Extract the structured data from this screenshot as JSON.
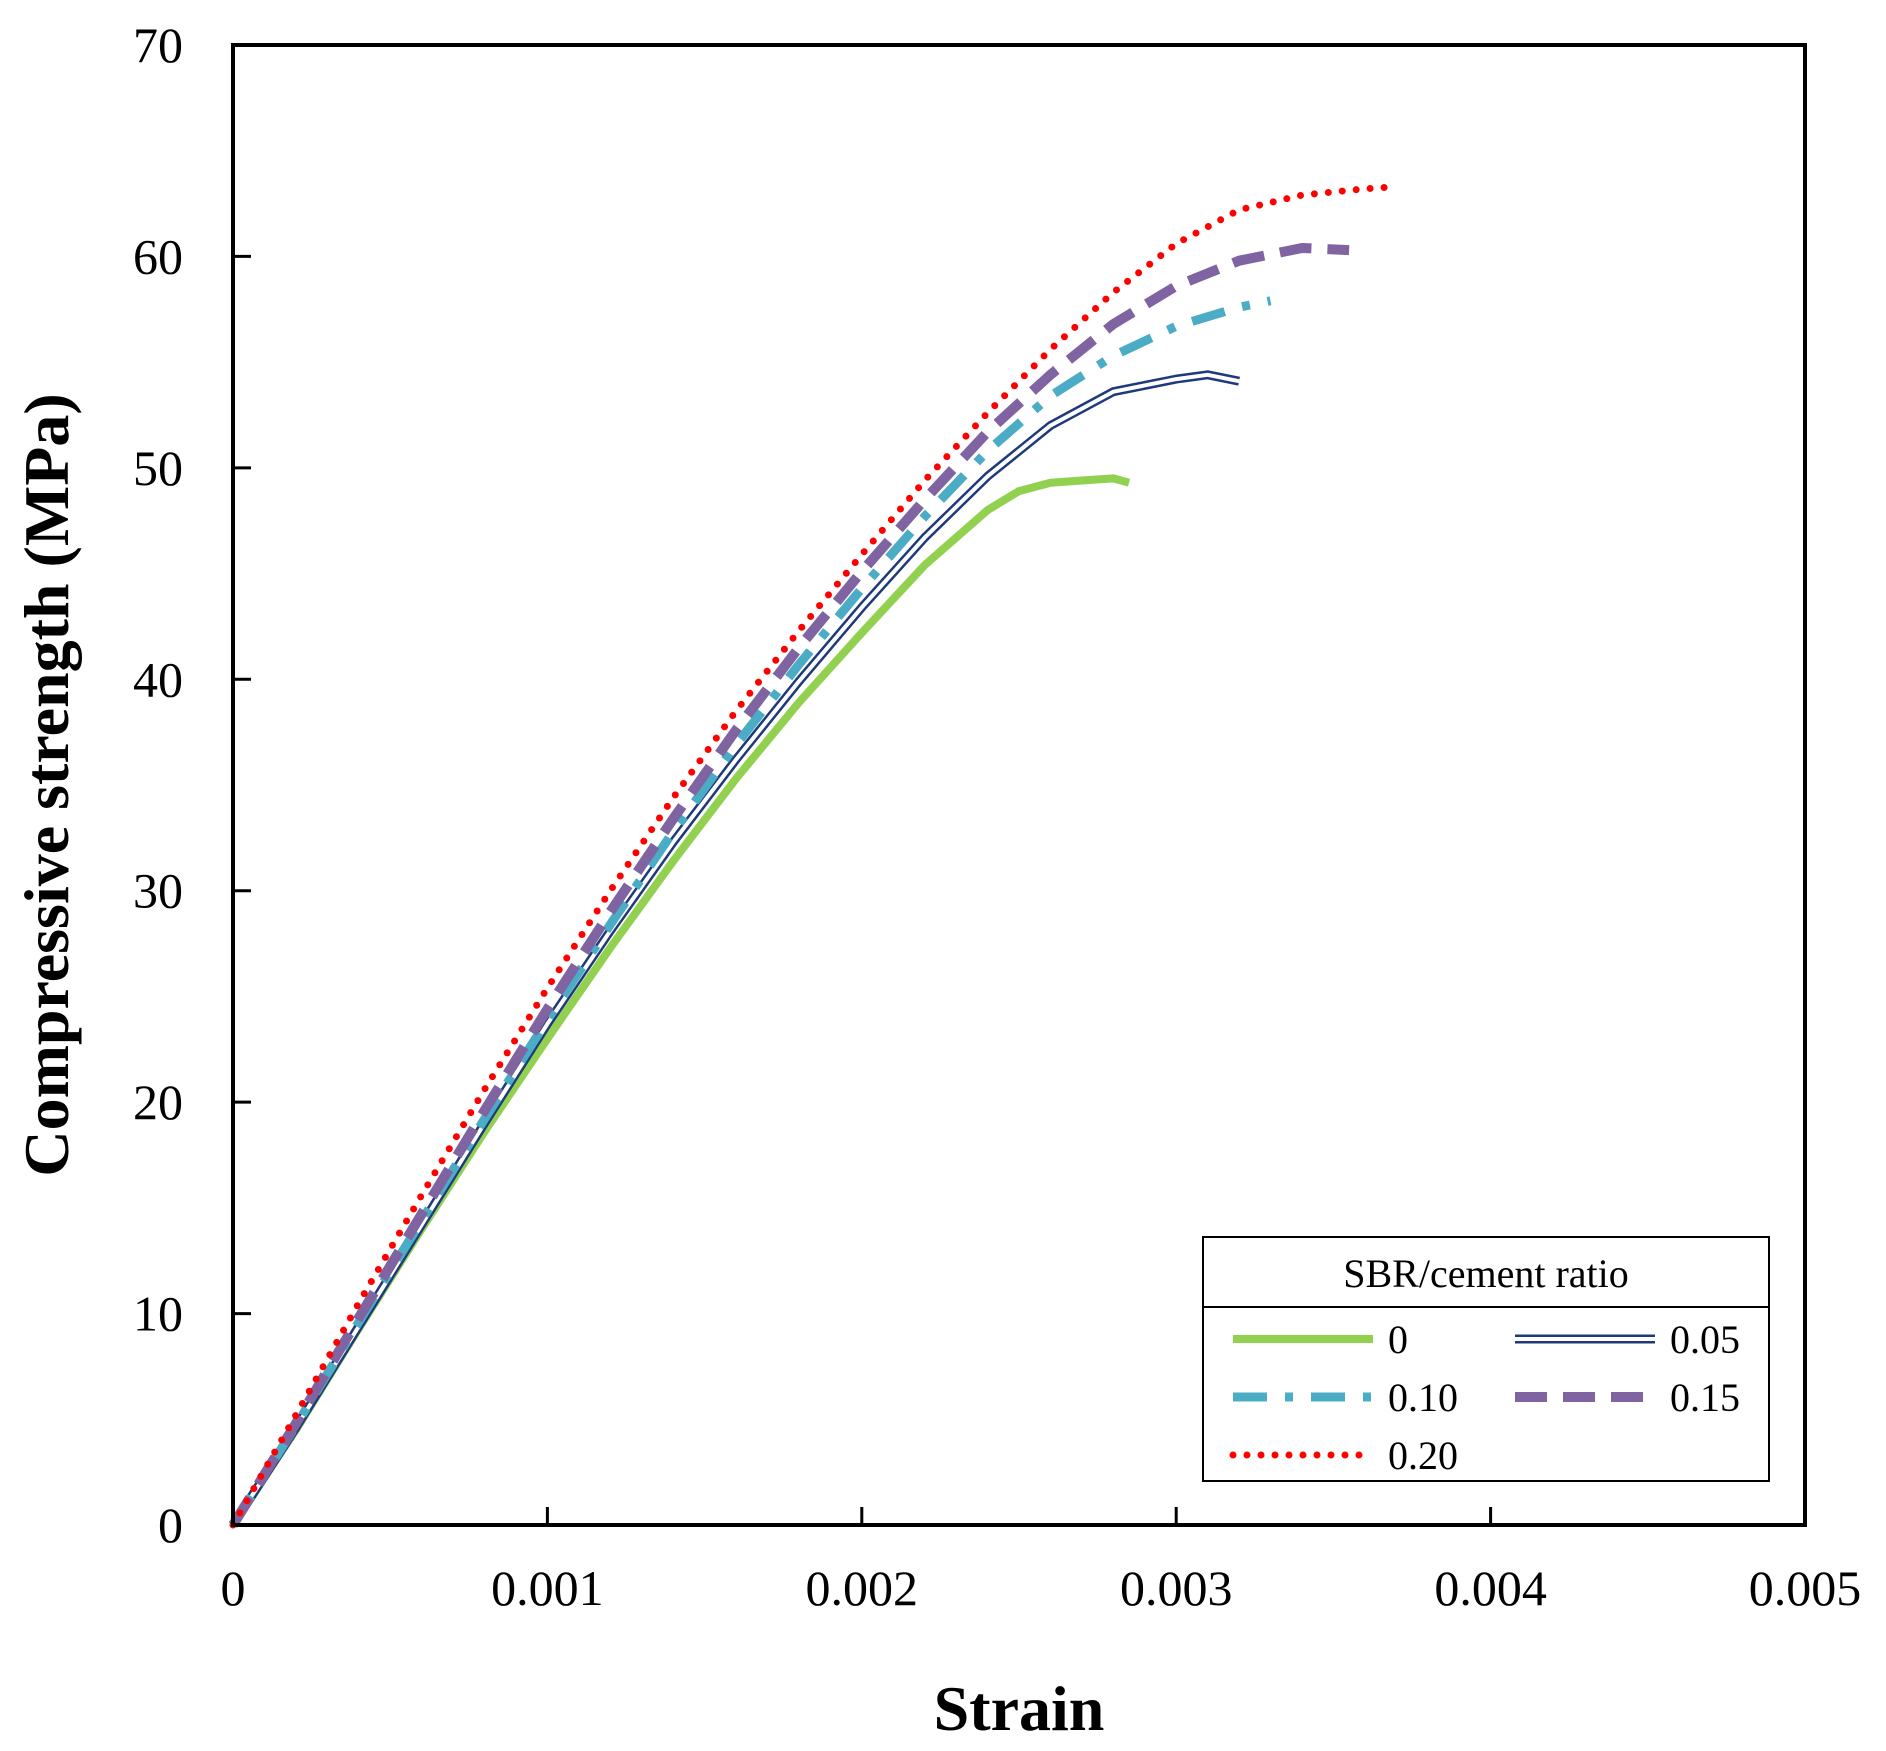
{
  "chart_data": {
    "type": "line",
    "xlabel": "Strain",
    "ylabel": "Compressive strength (MPa)",
    "xlim": [
      0,
      0.005
    ],
    "ylim": [
      0,
      70
    ],
    "xticks": [
      0,
      0.001,
      0.002,
      0.003,
      0.004,
      0.005
    ],
    "xtick_labels": [
      "0",
      "0.001",
      "0.002",
      "0.003",
      "0.004",
      "0.005"
    ],
    "yticks": [
      0,
      10,
      20,
      30,
      40,
      50,
      60,
      70
    ],
    "ytick_labels": [
      "0",
      "10",
      "20",
      "30",
      "40",
      "50",
      "60",
      "70"
    ],
    "grid": false,
    "legend": {
      "title": "SBR/cement  ratio",
      "position": "bottom-right"
    },
    "series": [
      {
        "name": "0",
        "color": "#92D050",
        "style": "solid",
        "x": [
          0,
          0.0002,
          0.0004,
          0.0006,
          0.0008,
          0.001,
          0.0012,
          0.0014,
          0.0016,
          0.0018,
          0.002,
          0.0022,
          0.0024,
          0.0025,
          0.0026,
          0.0027,
          0.0028,
          0.00285
        ],
        "y": [
          0,
          4.5,
          9.3,
          14.0,
          18.6,
          23.0,
          27.3,
          31.4,
          35.3,
          38.9,
          42.2,
          45.4,
          48.0,
          48.9,
          49.3,
          49.4,
          49.5,
          49.3
        ]
      },
      {
        "name": "0.05",
        "color": "#1F3A7A",
        "style": "double",
        "x": [
          0,
          0.0002,
          0.0004,
          0.0006,
          0.0008,
          0.001,
          0.0012,
          0.0014,
          0.0016,
          0.0018,
          0.002,
          0.0022,
          0.0024,
          0.0026,
          0.0028,
          0.003,
          0.0031,
          0.0032
        ],
        "y": [
          0,
          4.6,
          9.4,
          14.2,
          19.0,
          23.7,
          28.1,
          32.3,
          36.2,
          39.9,
          43.4,
          46.7,
          49.6,
          52.0,
          53.6,
          54.2,
          54.4,
          54.1
        ]
      },
      {
        "name": "0.10",
        "color": "#4BACC6",
        "style": "dashdot",
        "x": [
          0,
          0.0002,
          0.0004,
          0.0006,
          0.0008,
          0.001,
          0.0012,
          0.0014,
          0.0016,
          0.0018,
          0.002,
          0.0022,
          0.0024,
          0.0026,
          0.0028,
          0.003,
          0.0032,
          0.0033
        ],
        "y": [
          0,
          4.7,
          9.6,
          14.4,
          19.2,
          23.9,
          28.4,
          32.8,
          36.9,
          40.7,
          44.3,
          47.7,
          50.8,
          53.4,
          55.3,
          56.7,
          57.6,
          57.9
        ]
      },
      {
        "name": "0.15",
        "color": "#8064A2",
        "style": "dashed",
        "x": [
          0,
          0.0002,
          0.0004,
          0.0006,
          0.0008,
          0.001,
          0.0012,
          0.0014,
          0.0016,
          0.0018,
          0.002,
          0.0022,
          0.0024,
          0.0026,
          0.0028,
          0.003,
          0.0032,
          0.0034,
          0.00355
        ],
        "y": [
          0,
          4.8,
          9.8,
          14.7,
          19.6,
          24.4,
          29.0,
          33.4,
          37.6,
          41.5,
          45.1,
          48.5,
          51.7,
          54.4,
          56.8,
          58.6,
          59.8,
          60.4,
          60.3
        ]
      },
      {
        "name": "0.20",
        "color": "#FF0000",
        "style": "dotted",
        "x": [
          0,
          0.0002,
          0.0004,
          0.0006,
          0.0008,
          0.001,
          0.0012,
          0.0014,
          0.0016,
          0.0018,
          0.002,
          0.0022,
          0.0024,
          0.0026,
          0.0028,
          0.003,
          0.0032,
          0.0034,
          0.0036,
          0.0037
        ],
        "y": [
          0,
          5.2,
          10.5,
          15.6,
          20.6,
          25.4,
          30.0,
          34.4,
          38.5,
          42.3,
          45.9,
          49.4,
          52.6,
          55.6,
          58.3,
          60.6,
          62.2,
          62.9,
          63.2,
          63.3
        ]
      }
    ]
  }
}
